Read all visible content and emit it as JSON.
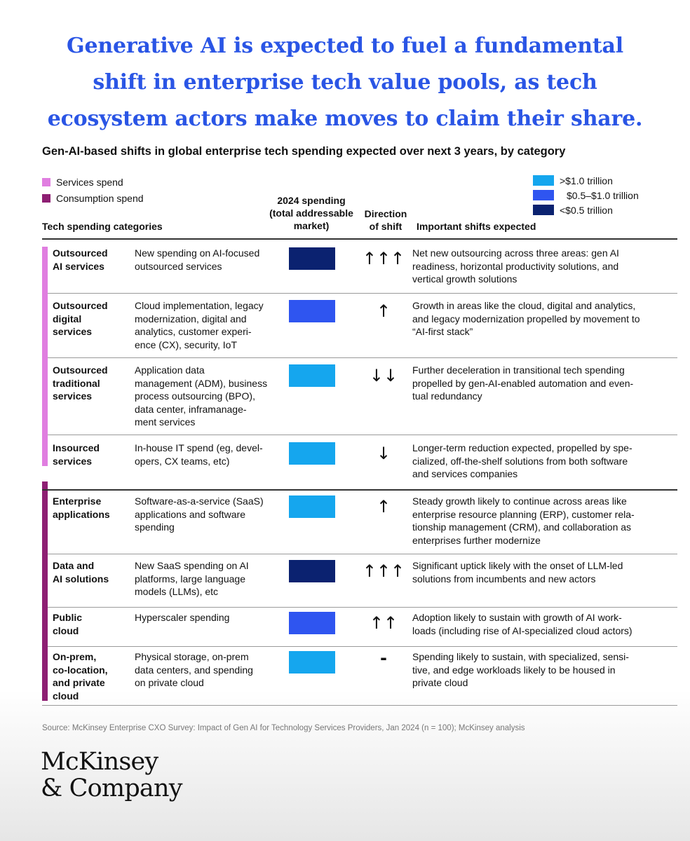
{
  "headline": {
    "line1": "Generative AI is expected to fuel a fundamental",
    "line2": "shift in enterprise tech value pools, as tech",
    "line3": "ecosystem actors make moves to claim their share."
  },
  "subtitle": "Gen-AI-based shifts in global enterprise tech spending expected over next 3 years, by category",
  "legend_type": [
    {
      "label": "Services spend",
      "color": "#e07ee0"
    },
    {
      "label": "Consumption spend",
      "color": "#8e1f73"
    }
  ],
  "legend_size": [
    {
      "label": ">$1.0 trillion",
      "color": "#15a6ee"
    },
    {
      "label": "$0.5–$1.0 trillion",
      "color": "#2f55f0"
    },
    {
      "label": "<$0.5 trillion",
      "color": "#0b2270"
    }
  ],
  "columns": {
    "categories": "Tech spending categories",
    "spend_line1": "2024 spending",
    "spend_line2": "(total addressable",
    "spend_line3": "market)",
    "dir_line1": "Direction",
    "dir_line2": "of shift",
    "shifts": "Important shifts expected"
  },
  "rows": [
    {
      "cat": [
        "Outsourced",
        "AI services"
      ],
      "desc": [
        "New spending on AI-focused",
        "outsourced services"
      ],
      "color": "#0b2270",
      "arrow": "↑↑↑",
      "shift": [
        "Net new outsourcing across three areas: gen AI",
        "readiness, horizontal productivity solutions, and",
        "vertical growth solutions"
      ]
    },
    {
      "cat": [
        "Outsourced",
        "digital",
        "services"
      ],
      "desc": [
        "Cloud implementation, legacy",
        "modernization, digital and",
        "analytics, customer experi-",
        "ence (CX), security, IoT"
      ],
      "color": "#2f55f0",
      "arrow": "↑",
      "shift": [
        "Growth in areas like the cloud, digital and analytics,",
        "and legacy modernization propelled by movement to",
        "“AI-first stack”"
      ]
    },
    {
      "cat": [
        "Outsourced",
        "traditional",
        "services"
      ],
      "desc": [
        "Application data",
        "management (ADM), business",
        "process outsourcing (BPO),",
        "data center, inframanage-",
        "ment services"
      ],
      "color": "#15a6ee",
      "arrow": "↓↓",
      "shift": [
        "Further deceleration in transitional tech spending",
        "propelled by gen-AI-enabled automation and even-",
        "tual redundancy"
      ]
    },
    {
      "cat": [
        "Insourced",
        "services"
      ],
      "desc": [
        "In-house IT spend (eg, devel-",
        "opers, CX teams, etc)"
      ],
      "color": "#15a6ee",
      "arrow": "↓",
      "shift": [
        "Longer-term reduction expected, propelled by spe-",
        "cialized, off-the-shelf solutions from both software",
        "and services companies"
      ]
    },
    {
      "cat": [
        "Enterprise",
        "applications"
      ],
      "desc": [
        "Software-as-a-service (SaaS)",
        "applications and software",
        "spending"
      ],
      "color": "#15a6ee",
      "arrow": "↑",
      "shift": [
        "Steady growth likely to continue across areas like",
        "enterprise resource planning (ERP), customer rela-",
        "tionship management (CRM), and collaboration as",
        "enterprises further modernize"
      ]
    },
    {
      "cat": [
        "Data and",
        "AI solutions"
      ],
      "desc": [
        "New SaaS spending on AI",
        "platforms, large language",
        "models (LLMs), etc"
      ],
      "color": "#0b2270",
      "arrow": "↑↑↑",
      "shift": [
        "Significant uptick likely with the onset of LLM-led",
        "solutions from incumbents and new actors"
      ]
    },
    {
      "cat": [
        "Public",
        "cloud"
      ],
      "desc": [
        "Hyperscaler spending"
      ],
      "color": "#2f55f0",
      "arrow": "↑↑",
      "shift": [
        "Adoption likely to sustain with growth of AI work-",
        "loads (including rise of AI-specialized cloud actors)"
      ]
    },
    {
      "cat": [
        "On-prem,",
        "co-location,",
        "and private",
        "cloud"
      ],
      "desc": [
        "Physical storage, on-prem",
        "data centers, and spending",
        "on private cloud"
      ],
      "color": "#15a6ee",
      "arrow": "-",
      "shift": [
        "Spending likely to sustain, with specialized, sensi-",
        "tive, and edge workloads likely to be housed in",
        "private cloud"
      ]
    }
  ],
  "source": "Source: McKinsey Enterprise CXO Survey: Impact of Gen AI for Technology Services Providers, Jan 2024 (n = 100); McKinsey analysis",
  "logo": {
    "line1": "McKinsey",
    "line2": "& Company"
  }
}
